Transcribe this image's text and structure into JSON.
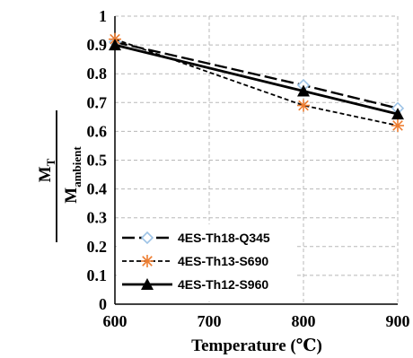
{
  "chart_data": {
    "type": "line",
    "xlabel": "Temperature (℃)",
    "ylabel": {
      "numerator": "M",
      "numerator_sub": "T",
      "denominator": "M",
      "denominator_sub": "ambient"
    },
    "xlim": [
      600,
      900
    ],
    "ylim": [
      0,
      1
    ],
    "x_ticks": [
      "600",
      "700",
      "800",
      "900"
    ],
    "y_ticks": [
      "0",
      "0.1",
      "0.2",
      "0.3",
      "0.4",
      "0.5",
      "0.6",
      "0.7",
      "0.8",
      "0.9",
      "1"
    ],
    "grid": true,
    "legend_position": "bottom-left",
    "series": [
      {
        "name": "4ES-Th18-Q345",
        "x": [
          600,
          800,
          900
        ],
        "y": [
          0.91,
          0.76,
          0.68
        ],
        "line_style": "long-dash",
        "marker": "diamond-open",
        "marker_color": "#9dc3e6",
        "color": "#000000"
      },
      {
        "name": "4ES-Th13-S690",
        "x": [
          600,
          800,
          900
        ],
        "y": [
          0.92,
          0.69,
          0.62
        ],
        "line_style": "short-dash",
        "marker": "asterisk",
        "marker_color": "#ed7d31",
        "color": "#000000"
      },
      {
        "name": "4ES-Th12-S960",
        "x": [
          600,
          800,
          900
        ],
        "y": [
          0.9,
          0.74,
          0.66
        ],
        "line_style": "solid",
        "marker": "triangle-filled",
        "marker_color": "#000000",
        "color": "#000000"
      }
    ]
  }
}
